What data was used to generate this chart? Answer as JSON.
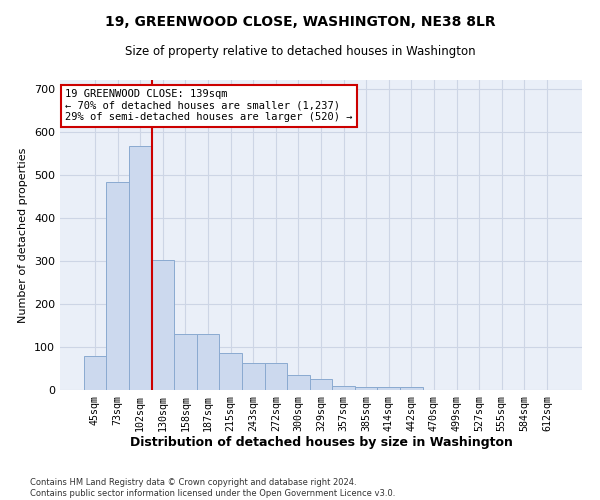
{
  "title": "19, GREENWOOD CLOSE, WASHINGTON, NE38 8LR",
  "subtitle": "Size of property relative to detached houses in Washington",
  "xlabel": "Distribution of detached houses by size in Washington",
  "ylabel": "Number of detached properties",
  "categories": [
    "45sqm",
    "73sqm",
    "102sqm",
    "130sqm",
    "158sqm",
    "187sqm",
    "215sqm",
    "243sqm",
    "272sqm",
    "300sqm",
    "329sqm",
    "357sqm",
    "385sqm",
    "414sqm",
    "442sqm",
    "470sqm",
    "499sqm",
    "527sqm",
    "555sqm",
    "584sqm",
    "612sqm"
  ],
  "values": [
    80,
    483,
    567,
    302,
    130,
    130,
    85,
    62,
    62,
    35,
    25,
    10,
    8,
    8,
    8,
    0,
    0,
    0,
    0,
    0,
    0
  ],
  "bar_color": "#ccd9ee",
  "bar_edge_color": "#8aaad0",
  "vline_color": "#cc0000",
  "annotation_text": "19 GREENWOOD CLOSE: 139sqm\n← 70% of detached houses are smaller (1,237)\n29% of semi-detached houses are larger (520) →",
  "annotation_box_color": "#ffffff",
  "annotation_box_edge": "#cc0000",
  "grid_color": "#cdd5e5",
  "background_color": "#eaeff8",
  "footer": "Contains HM Land Registry data © Crown copyright and database right 2024.\nContains public sector information licensed under the Open Government Licence v3.0.",
  "ylim": [
    0,
    720
  ],
  "yticks": [
    0,
    100,
    200,
    300,
    400,
    500,
    600,
    700
  ],
  "title_fontsize": 10,
  "subtitle_fontsize": 8.5,
  "ylabel_fontsize": 8,
  "xlabel_fontsize": 9
}
